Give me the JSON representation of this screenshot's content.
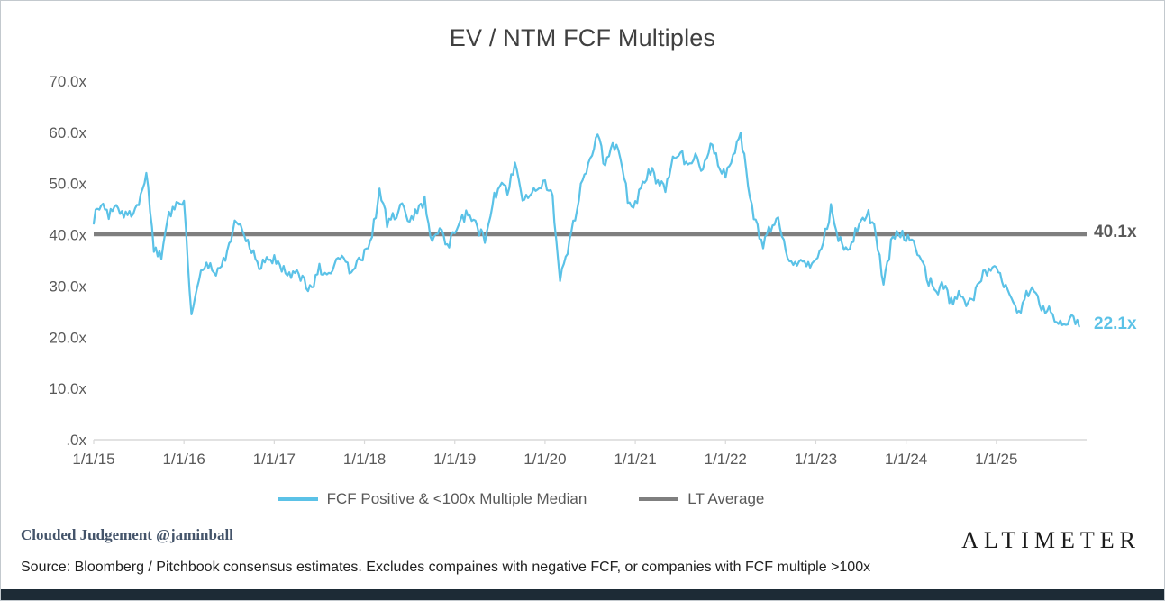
{
  "chart_data": {
    "type": "line",
    "title": "EV / NTM FCF Multiples",
    "xlabel": "",
    "ylabel": "",
    "ylim": [
      0,
      70
    ],
    "grid": false,
    "legend_position": "bottom",
    "x_start_year": 2015,
    "x_months_per_point": 1,
    "y_ticks": [
      {
        "v": 70,
        "label": "70.0x"
      },
      {
        "v": 60,
        "label": "60.0x"
      },
      {
        "v": 50,
        "label": "50.0x"
      },
      {
        "v": 40,
        "label": "40.0x"
      },
      {
        "v": 30,
        "label": "30.0x"
      },
      {
        "v": 20,
        "label": "20.0x"
      },
      {
        "v": 10,
        "label": "10.0x"
      },
      {
        "v": 0,
        "label": ".0x"
      }
    ],
    "x_ticks": [
      {
        "year": 2015,
        "label": "1/1/15"
      },
      {
        "year": 2016,
        "label": "1/1/16"
      },
      {
        "year": 2017,
        "label": "1/1/17"
      },
      {
        "year": 2018,
        "label": "1/1/18"
      },
      {
        "year": 2019,
        "label": "1/1/19"
      },
      {
        "year": 2020,
        "label": "1/1/20"
      },
      {
        "year": 2021,
        "label": "1/1/21"
      },
      {
        "year": 2022,
        "label": "1/1/22"
      },
      {
        "year": 2023,
        "label": "1/1/23"
      },
      {
        "year": 2024,
        "label": "1/1/24"
      },
      {
        "year": 2025,
        "label": "1/1/25"
      }
    ],
    "series": [
      {
        "name": "FCF Positive & <100x Multiple Median",
        "color": "#5BC2E7",
        "values": [
          43.0,
          46.5,
          44.0,
          46.0,
          43.5,
          44.5,
          46.5,
          52.0,
          37.5,
          36.0,
          44.0,
          46.5,
          47.0,
          23.5,
          31.5,
          35.0,
          33.0,
          33.5,
          38.5,
          43.0,
          40.0,
          37.5,
          34.0,
          35.0,
          35.5,
          33.5,
          32.5,
          33.0,
          30.5,
          29.5,
          33.5,
          31.5,
          34.0,
          35.5,
          33.0,
          34.5,
          36.5,
          40.0,
          48.5,
          42.5,
          43.5,
          46.0,
          42.5,
          44.5,
          46.5,
          38.0,
          42.0,
          37.5,
          40.5,
          43.5,
          44.0,
          41.0,
          39.5,
          46.0,
          50.5,
          48.5,
          54.0,
          47.0,
          48.5,
          49.5,
          50.5,
          47.5,
          31.0,
          36.5,
          43.5,
          51.0,
          55.0,
          59.5,
          53.0,
          58.0,
          55.0,
          47.0,
          46.0,
          50.0,
          52.5,
          50.5,
          48.5,
          55.5,
          56.5,
          53.0,
          55.0,
          52.0,
          58.5,
          54.0,
          52.0,
          55.5,
          59.5,
          50.0,
          42.0,
          38.0,
          41.5,
          42.5,
          36.5,
          33.5,
          35.5,
          34.0,
          36.0,
          38.5,
          45.0,
          39.5,
          37.0,
          39.5,
          43.0,
          44.0,
          40.0,
          31.0,
          38.0,
          40.5,
          39.5,
          38.0,
          36.0,
          31.0,
          29.0,
          30.0,
          27.0,
          28.5,
          26.5,
          28.0,
          31.5,
          33.5,
          33.0,
          30.0,
          27.5,
          25.0,
          28.0,
          29.5,
          26.0,
          25.0,
          23.0,
          21.8,
          24.0,
          22.1
        ]
      },
      {
        "name": "LT Average",
        "color": "#7F7F7F",
        "value": 40.1
      }
    ],
    "annotations": [
      {
        "text": "40.1x",
        "y": 40.1,
        "color": "#595959"
      },
      {
        "text": "22.1x",
        "y": 22.1,
        "color": "#5BC2E7"
      }
    ]
  },
  "footer": {
    "credit": "Clouded Judgement @jaminball",
    "logo": "ALTIMETER",
    "source": "Source: Bloomberg / Pitchbook consensus estimates. Excludes compaines with negative FCF, or companies with FCF multiple >100x"
  }
}
